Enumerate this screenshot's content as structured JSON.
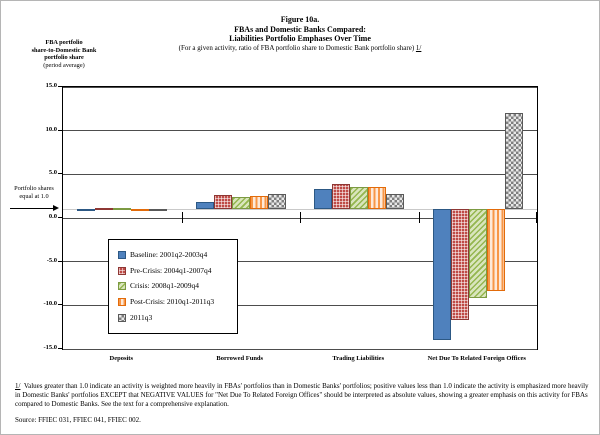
{
  "header": {
    "line1": "Figure 10a.",
    "line2": "FBAs and Domestic Banks Compared:",
    "line3": "Liabilities Portfolio Emphases Over Time",
    "subtitle": "(For a given activity, ratio of FBA portfolio share to Domestic Bank portfolio share)",
    "footnote_ref": "1/"
  },
  "y_axis": {
    "title_line1": "FBA portfolio",
    "title_line2": "share-to-Domestic Bank",
    "title_line3": "portfolio share",
    "title_note": "(period average)",
    "tick_labels": [
      "15.0",
      "10.0",
      "5.0",
      "0.0",
      "-5.0",
      "-10.0",
      "-15.0"
    ]
  },
  "annotation": {
    "line1": "Portfolio shares",
    "line2": "equal at 1.0"
  },
  "chart_data": {
    "type": "bar",
    "title": "FBAs and Domestic Banks Compared: Liabilities Portfolio Emphases Over Time",
    "ylabel": "FBA portfolio share-to-Domestic Bank portfolio share (period average)",
    "ylim": [
      -15,
      15
    ],
    "ytick_values": [
      15,
      10,
      5,
      0,
      -5,
      -10,
      -15
    ],
    "bar_baseline": 1.0,
    "reference_line": 1.0,
    "grid": true,
    "legend_position": "inside-lower-left",
    "categories": [
      "Deposits",
      "Borrowed Funds",
      "Trading Liabilities",
      "Net Due To Related Foreign Offices"
    ],
    "series": [
      {
        "name": "Baseline: 2001q2-2003q4",
        "color": "#4F81BD",
        "pattern": "solid",
        "values": [
          1.0,
          1.8,
          3.3,
          -14.0
        ]
      },
      {
        "name": "Pre-Crisis: 2004q1-2007q4",
        "color": "#C0504D",
        "pattern": "dot-grid",
        "values": [
          1.2,
          2.6,
          3.9,
          -11.7
        ]
      },
      {
        "name": "Crisis: 2008q1-2009q4",
        "color": "#9BBB59",
        "pattern": "diagonal-stripes",
        "values": [
          1.2,
          2.4,
          3.6,
          -9.2
        ]
      },
      {
        "name": "Post-Crisis: 2010q1-2011q3",
        "color": "#F79646",
        "pattern": "vertical-stripes",
        "values": [
          1.0,
          2.5,
          3.5,
          -8.4
        ]
      },
      {
        "name": "2011q3",
        "color": "#808080",
        "pattern": "checkerboard",
        "values": [
          0.85,
          2.8,
          2.7,
          12.0
        ]
      }
    ]
  },
  "footnote": {
    "ref": "1/",
    "text": "Values greater than 1.0 indicate an activity is weighted more heavily in FBAs' portfolios than in Domestic Banks' portfolios; positive values less than 1.0 indicate the activity is emphasized more heavily in Domestic Banks' portfolios EXCEPT that NEGATIVE VALUES for \"Net Due To Related Foreign Offices\" should be interpreted as absolute values, showing a greater emphasis on this activity for FBAs compared to Domestic Banks.  See the text for a comprehensive explanation."
  },
  "source": "Source: FFIEC 031, FFIEC 041, FFIEC 002."
}
